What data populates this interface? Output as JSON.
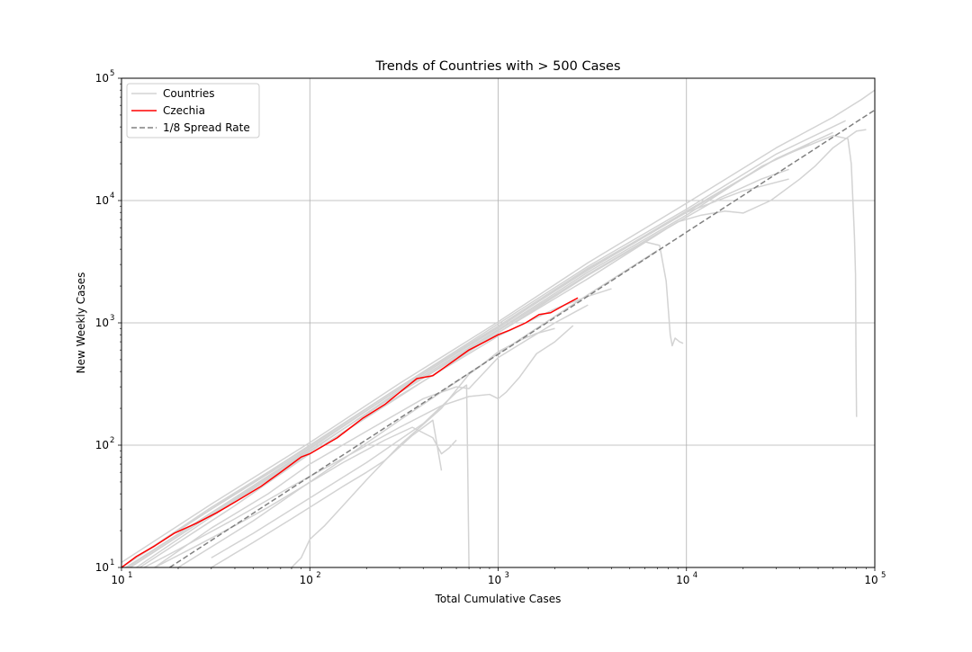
{
  "chart_data": {
    "type": "line",
    "title": "Trends of Countries with > 500 Cases",
    "xlabel": "Total Cumulative Cases",
    "ylabel": "New Weekly Cases",
    "x_scale": "log",
    "y_scale": "log",
    "xlim": [
      10,
      100000
    ],
    "ylim": [
      10,
      100000
    ],
    "grid": true,
    "legend_position": "top-left",
    "x_ticks": [
      {
        "value": 10,
        "base": "10",
        "exp": "1"
      },
      {
        "value": 100,
        "base": "10",
        "exp": "2"
      },
      {
        "value": 1000,
        "base": "10",
        "exp": "3"
      },
      {
        "value": 10000,
        "base": "10",
        "exp": "4"
      },
      {
        "value": 100000,
        "base": "10",
        "exp": "5"
      }
    ],
    "y_ticks": [
      {
        "value": 10,
        "base": "10",
        "exp": "1"
      },
      {
        "value": 100,
        "base": "10",
        "exp": "2"
      },
      {
        "value": 1000,
        "base": "10",
        "exp": "3"
      },
      {
        "value": 10000,
        "base": "10",
        "exp": "4"
      },
      {
        "value": 100000,
        "base": "10",
        "exp": "5"
      }
    ],
    "legend": [
      {
        "label": "Countries",
        "color": "#d3d3d3",
        "dash": "solid"
      },
      {
        "label": "Czechia",
        "color": "#ff0000",
        "dash": "solid"
      },
      {
        "label": "1/8 Spread Rate",
        "color": "#808080",
        "dash": "dashed"
      }
    ],
    "colors": {
      "countries": "#d3d3d3",
      "highlight": "#ff0000",
      "reference": "#808080",
      "grid": "#b0b0b0"
    },
    "series": [
      {
        "name": "Czechia",
        "role": "highlight",
        "x": [
          10,
          12,
          15,
          19,
          25,
          32,
          41,
          55,
          70,
          90,
          100,
          140,
          190,
          250,
          300,
          370,
          450,
          560,
          700,
          850,
          1000,
          1150,
          1400,
          1650,
          1900,
          2250,
          2650
        ],
        "y": [
          10,
          12.3,
          15,
          19,
          23,
          28,
          35,
          46,
          60,
          80,
          85,
          115,
          165,
          215,
          270,
          350,
          370,
          470,
          600,
          700,
          800,
          870,
          1000,
          1170,
          1210,
          1400,
          1600
        ]
      },
      {
        "name": "1/8 Spread Rate",
        "role": "reference",
        "x": [
          18,
          100000
        ],
        "y": [
          10,
          55000
        ]
      },
      {
        "role": "country",
        "x": [
          10,
          30,
          100,
          300,
          1000,
          3000,
          10000,
          30000,
          60000,
          85000,
          100000
        ],
        "y": [
          11,
          33,
          105,
          320,
          1020,
          3100,
          9500,
          27000,
          48000,
          67000,
          80000
        ]
      },
      {
        "role": "country",
        "x": [
          10,
          30,
          100,
          300,
          1000,
          3000,
          10000,
          30000,
          70000
        ],
        "y": [
          10,
          30,
          100,
          300,
          980,
          2900,
          8500,
          24000,
          45000
        ]
      },
      {
        "role": "country",
        "x": [
          10,
          30,
          100,
          300,
          1000,
          3000,
          10000,
          30000,
          60000
        ],
        "y": [
          9.5,
          28,
          93,
          290,
          920,
          2700,
          8000,
          22000,
          36000
        ]
      },
      {
        "role": "country",
        "x": [
          12,
          30,
          100,
          300,
          1000,
          3000,
          10000,
          25000,
          45000
        ],
        "y": [
          10,
          26,
          88,
          280,
          880,
          2600,
          7600,
          19000,
          29000
        ]
      },
      {
        "role": "country",
        "x": [
          10,
          40,
          100,
          300,
          1000,
          3000,
          8000,
          15000,
          25000,
          35000
        ],
        "y": [
          8,
          32,
          85,
          250,
          830,
          2300,
          6000,
          10500,
          15000,
          18000
        ]
      },
      {
        "role": "country",
        "x": [
          10,
          30,
          100,
          300,
          1000,
          3000,
          9000,
          12000,
          16000,
          20000,
          28000,
          40000,
          44000,
          48000,
          60000,
          80000,
          90000
        ],
        "y": [
          9,
          27,
          90,
          270,
          860,
          2500,
          6700,
          7600,
          8200,
          7900,
          10000,
          15000,
          17000,
          19000,
          27000,
          37000,
          38000
        ]
      },
      {
        "role": "country",
        "x": [
          10,
          30,
          100,
          300,
          1000,
          3000,
          10000,
          30000,
          60000,
          72000,
          75000,
          77000,
          78000,
          79000,
          79500,
          80000
        ],
        "y": [
          10,
          30,
          95,
          290,
          910,
          2750,
          8200,
          22000,
          34000,
          32000,
          20000,
          8000,
          5000,
          2500,
          500,
          170
        ]
      },
      {
        "role": "country",
        "x": [
          10,
          30,
          100,
          300,
          1000,
          3000,
          6000,
          7200,
          7800,
          8200,
          8400,
          8700,
          9200,
          9600
        ],
        "y": [
          9.3,
          28,
          90,
          270,
          830,
          2450,
          4600,
          4300,
          2200,
          800,
          650,
          750,
          700,
          680
        ]
      },
      {
        "role": "country",
        "x": [
          10,
          30,
          100,
          300,
          1000,
          2000,
          3000,
          4000
        ],
        "y": [
          9,
          27,
          85,
          255,
          780,
          1300,
          1650,
          1900
        ]
      },
      {
        "role": "country",
        "x": [
          15,
          30,
          60,
          100,
          200,
          400,
          600,
          700,
          1000,
          2000,
          3000
        ],
        "y": [
          10,
          21,
          40,
          70,
          130,
          240,
          300,
          290,
          520,
          1000,
          1400
        ]
      },
      {
        "role": "country",
        "x": [
          10,
          20,
          40,
          80,
          150,
          300,
          500,
          700,
          900,
          1000,
          1100,
          1300,
          1600,
          2000,
          2500
        ],
        "y": [
          8,
          14,
          25,
          46,
          78,
          140,
          210,
          250,
          260,
          240,
          270,
          360,
          560,
          700,
          950
        ]
      },
      {
        "role": "country",
        "x": [
          15,
          25,
          40,
          60,
          90,
          150,
          250,
          350,
          450,
          500,
          550,
          600
        ],
        "y": [
          10,
          15,
          22,
          31,
          45,
          72,
          110,
          140,
          115,
          85,
          95,
          110
        ]
      },
      {
        "role": "country",
        "x": [
          30,
          50,
          80,
          100,
          150,
          200,
          250,
          350,
          450,
          500
        ],
        "y": [
          10,
          16,
          25,
          31,
          46,
          60,
          75,
          120,
          160,
          62
        ]
      },
      {
        "role": "country",
        "x": [
          80,
          90,
          100,
          120,
          150,
          200,
          300,
          500,
          700,
          800,
          1000,
          1300,
          1600,
          2000
        ],
        "y": [
          10,
          12,
          17,
          22,
          32,
          52,
          100,
          200,
          380,
          440,
          580,
          720,
          820,
          900
        ]
      },
      {
        "role": "country",
        "x": [
          30,
          50,
          100,
          200,
          400,
          600,
          680,
          690,
          700
        ],
        "y": [
          12,
          19,
          37,
          72,
          150,
          270,
          310,
          60,
          10
        ]
      },
      {
        "role": "country",
        "x": [
          10,
          30,
          100,
          300,
          1000,
          3000,
          10000,
          20000,
          35000
        ],
        "y": [
          10,
          31,
          98,
          300,
          940,
          2800,
          8000,
          12000,
          15000
        ]
      },
      {
        "role": "country",
        "x": [
          20,
          50,
          100,
          300,
          1000,
          3000,
          7000
        ],
        "y": [
          10,
          24,
          50,
          160,
          560,
          1700,
          3900
        ]
      }
    ]
  }
}
